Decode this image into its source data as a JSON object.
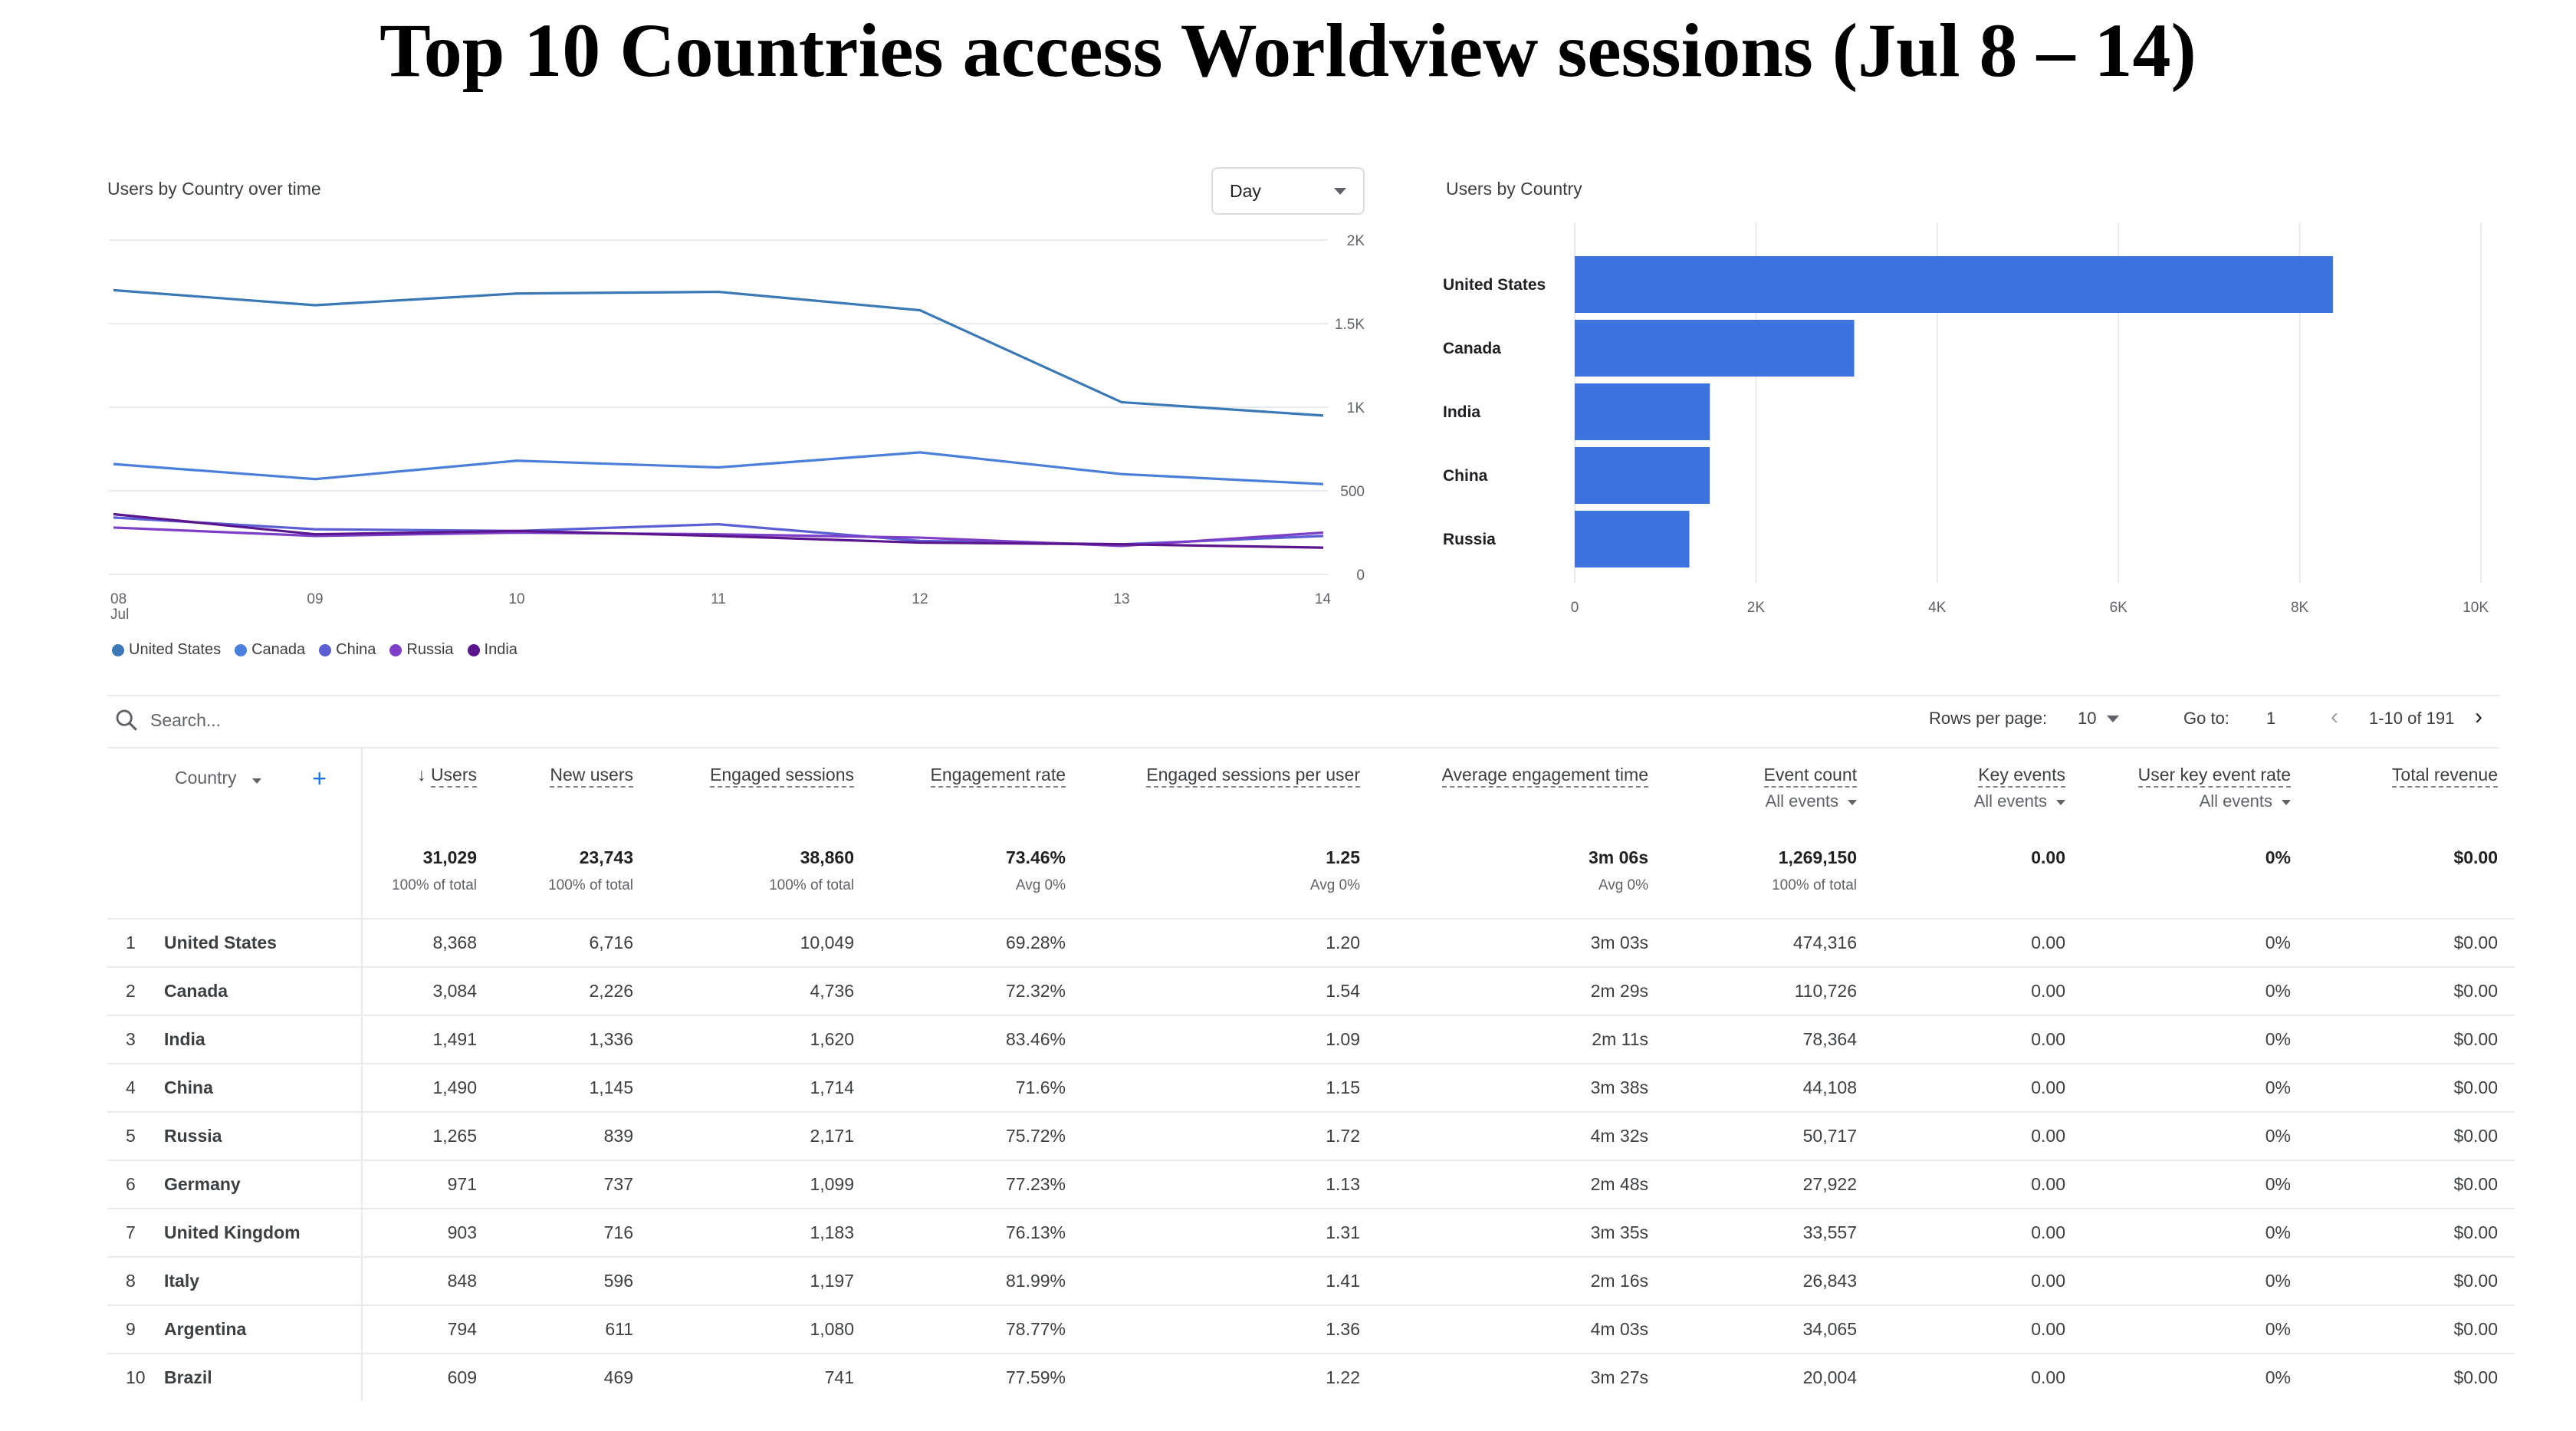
{
  "page_title": "Top 10 Countries access Worldview sessions (Jul 8 – 14)",
  "line_card": {
    "title": "Users by Country over time",
    "granularity": "Day",
    "x_labels": [
      "08",
      "09",
      "10",
      "11",
      "12",
      "13",
      "14"
    ],
    "x_sublabel": "Jul",
    "y_labels": [
      "2K",
      "1.5K",
      "1K",
      "500",
      "0"
    ]
  },
  "bar_card": {
    "title": "Users by Country",
    "x_labels": [
      "0",
      "2K",
      "4K",
      "6K",
      "8K",
      "10K"
    ]
  },
  "colors": {
    "United States": "#3b78b6",
    "Canada": "#4a7fdc",
    "China": "#5b5fd6",
    "Russia": "#7e3fc8",
    "India": "#5b168f",
    "bar": "#3c73df"
  },
  "chart_data": [
    {
      "type": "line",
      "title": "Users by Country over time",
      "x": [
        "08 Jul",
        "09",
        "10",
        "11",
        "12",
        "13",
        "14"
      ],
      "ylim": [
        0,
        2000
      ],
      "grid": true,
      "legend": "bottom-left",
      "series": [
        {
          "name": "United States",
          "values": [
            1700,
            1610,
            1680,
            1690,
            1580,
            1030,
            950
          ]
        },
        {
          "name": "Canada",
          "values": [
            660,
            570,
            680,
            640,
            730,
            600,
            540
          ]
        },
        {
          "name": "China",
          "values": [
            340,
            270,
            260,
            300,
            200,
            180,
            230
          ]
        },
        {
          "name": "Russia",
          "values": [
            280,
            230,
            250,
            240,
            220,
            170,
            250
          ]
        },
        {
          "name": "India",
          "values": [
            360,
            240,
            260,
            230,
            190,
            180,
            160
          ]
        }
      ]
    },
    {
      "type": "bar",
      "orientation": "horizontal",
      "title": "Users by Country",
      "categories": [
        "United States",
        "Canada",
        "India",
        "China",
        "Russia"
      ],
      "values": [
        8368,
        3084,
        1491,
        1490,
        1265
      ],
      "xlim": [
        0,
        10000
      ],
      "grid": true
    }
  ],
  "toolbar": {
    "search_placeholder": "Search...",
    "rows_per_page_label": "Rows per page:",
    "rows_per_page": "10",
    "goto_label": "Go to:",
    "goto_value": "1",
    "range": "1-10 of 191"
  },
  "table": {
    "dimension_header": "Country",
    "columns": [
      {
        "label": "Users",
        "sub": ""
      },
      {
        "label": "New users",
        "sub": ""
      },
      {
        "label": "Engaged sessions",
        "sub": ""
      },
      {
        "label": "Engagement rate",
        "sub": ""
      },
      {
        "label": "Engaged sessions per user",
        "sub": ""
      },
      {
        "label": "Average engagement time",
        "sub": ""
      },
      {
        "label": "Event count",
        "sub": "All events"
      },
      {
        "label": "Key events",
        "sub": "All events"
      },
      {
        "label": "User key event rate",
        "sub": "All events"
      },
      {
        "label": "Total revenue",
        "sub": ""
      }
    ],
    "totals": [
      {
        "value": "31,029",
        "pct": "100% of total"
      },
      {
        "value": "23,743",
        "pct": "100% of total"
      },
      {
        "value": "38,860",
        "pct": "100% of total"
      },
      {
        "value": "73.46%",
        "pct": "Avg 0%"
      },
      {
        "value": "1.25",
        "pct": "Avg 0%"
      },
      {
        "value": "3m 06s",
        "pct": "Avg 0%"
      },
      {
        "value": "1,269,150",
        "pct": "100% of total"
      },
      {
        "value": "0.00",
        "pct": ""
      },
      {
        "value": "0%",
        "pct": ""
      },
      {
        "value": "$0.00",
        "pct": ""
      }
    ],
    "rows": [
      {
        "idx": "1",
        "country": "United States",
        "cells": [
          "8,368",
          "6,716",
          "10,049",
          "69.28%",
          "1.20",
          "3m 03s",
          "474,316",
          "0.00",
          "0%",
          "$0.00"
        ]
      },
      {
        "idx": "2",
        "country": "Canada",
        "cells": [
          "3,084",
          "2,226",
          "4,736",
          "72.32%",
          "1.54",
          "2m 29s",
          "110,726",
          "0.00",
          "0%",
          "$0.00"
        ]
      },
      {
        "idx": "3",
        "country": "India",
        "cells": [
          "1,491",
          "1,336",
          "1,620",
          "83.46%",
          "1.09",
          "2m 11s",
          "78,364",
          "0.00",
          "0%",
          "$0.00"
        ]
      },
      {
        "idx": "4",
        "country": "China",
        "cells": [
          "1,490",
          "1,145",
          "1,714",
          "71.6%",
          "1.15",
          "3m 38s",
          "44,108",
          "0.00",
          "0%",
          "$0.00"
        ]
      },
      {
        "idx": "5",
        "country": "Russia",
        "cells": [
          "1,265",
          "839",
          "2,171",
          "75.72%",
          "1.72",
          "4m 32s",
          "50,717",
          "0.00",
          "0%",
          "$0.00"
        ]
      },
      {
        "idx": "6",
        "country": "Germany",
        "cells": [
          "971",
          "737",
          "1,099",
          "77.23%",
          "1.13",
          "2m 48s",
          "27,922",
          "0.00",
          "0%",
          "$0.00"
        ]
      },
      {
        "idx": "7",
        "country": "United Kingdom",
        "cells": [
          "903",
          "716",
          "1,183",
          "76.13%",
          "1.31",
          "3m 35s",
          "33,557",
          "0.00",
          "0%",
          "$0.00"
        ]
      },
      {
        "idx": "8",
        "country": "Italy",
        "cells": [
          "848",
          "596",
          "1,197",
          "81.99%",
          "1.41",
          "2m 16s",
          "26,843",
          "0.00",
          "0%",
          "$0.00"
        ]
      },
      {
        "idx": "9",
        "country": "Argentina",
        "cells": [
          "794",
          "611",
          "1,080",
          "78.77%",
          "1.36",
          "4m 03s",
          "34,065",
          "0.00",
          "0%",
          "$0.00"
        ]
      },
      {
        "idx": "10",
        "country": "Brazil",
        "cells": [
          "609",
          "469",
          "741",
          "77.59%",
          "1.22",
          "3m 27s",
          "20,004",
          "0.00",
          "0%",
          "$0.00"
        ]
      }
    ]
  }
}
